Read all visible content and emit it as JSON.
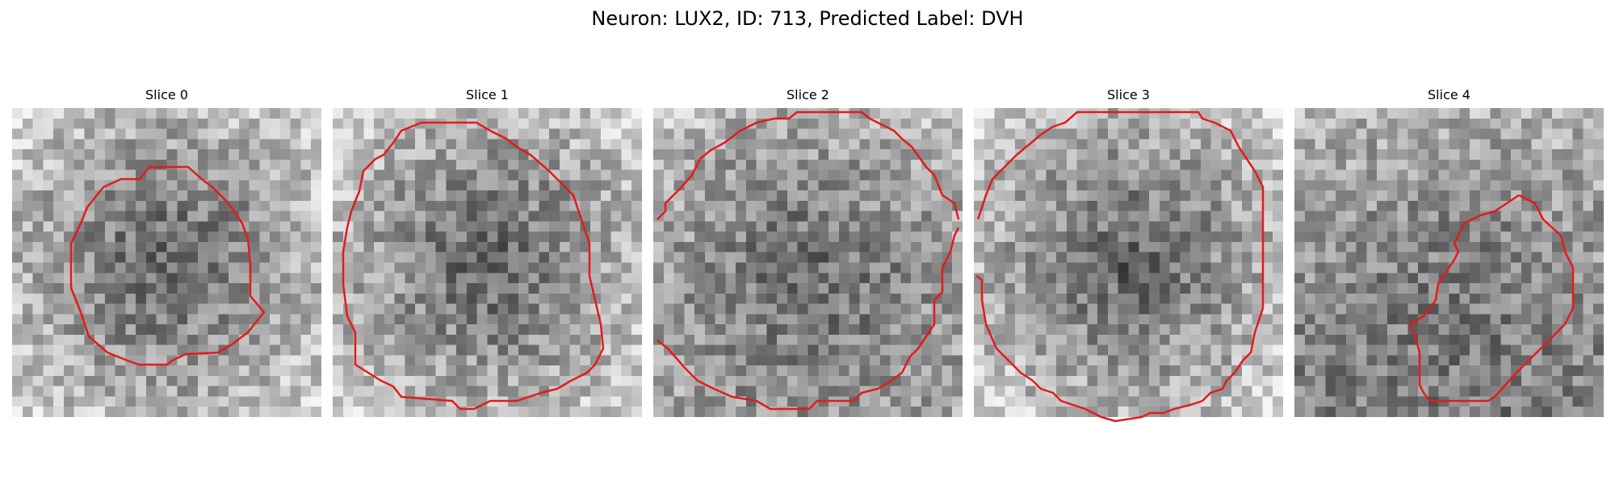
{
  "figure": {
    "title": "Neuron: LUX2, ID: 713, Predicted Label: DVH"
  },
  "slices": [
    {
      "title": "Slice 0",
      "vignette": "dark-center"
    },
    {
      "title": "Slice 1",
      "vignette": "dark-center"
    },
    {
      "title": "Slice 2",
      "vignette": "dark-bottom"
    },
    {
      "title": "Slice 3",
      "vignette": "dark-center"
    },
    {
      "title": "Slice 4",
      "vignette": "light-top"
    }
  ],
  "colors": {
    "contour": "#e41a1c",
    "background": "#ffffff"
  }
}
